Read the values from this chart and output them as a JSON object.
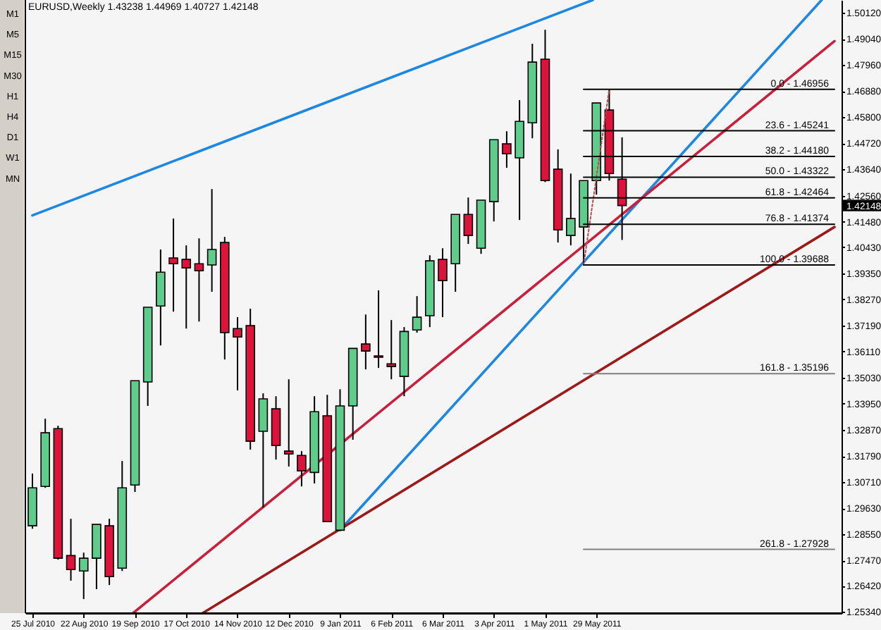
{
  "chart_data": {
    "type": "candlestick",
    "title": "EURUSD,Weekly 1.43238 1.44969 1.40727 1.42148",
    "x": [
      "2010-07-25",
      "2010-08-01",
      "2010-08-08",
      "2010-08-15",
      "2010-08-22",
      "2010-08-29",
      "2010-09-05",
      "2010-09-12",
      "2010-09-19",
      "2010-09-26",
      "2010-10-03",
      "2010-10-10",
      "2010-10-17",
      "2010-10-24",
      "2010-10-31",
      "2010-11-07",
      "2010-11-14",
      "2010-11-21",
      "2010-11-28",
      "2010-12-05",
      "2010-12-12",
      "2010-12-19",
      "2010-12-26",
      "2011-01-02",
      "2011-01-09",
      "2011-01-16",
      "2011-01-23",
      "2011-01-30",
      "2011-02-06",
      "2011-02-13",
      "2011-02-20",
      "2011-02-27",
      "2011-03-06",
      "2011-03-13",
      "2011-03-20",
      "2011-03-27",
      "2011-04-03",
      "2011-04-10",
      "2011-04-17",
      "2011-04-24",
      "2011-05-01",
      "2011-05-08",
      "2011-05-15",
      "2011-05-22",
      "2011-05-29",
      "2011-06-05",
      "2011-06-12"
    ],
    "ohlc": [
      [
        1.289,
        1.3106,
        1.2878,
        1.3047
      ],
      [
        1.3053,
        1.3333,
        1.3047,
        1.3275
      ],
      [
        1.3292,
        1.3304,
        1.275,
        1.2756
      ],
      [
        1.2767,
        1.2919,
        1.2663,
        1.2709
      ],
      [
        1.2703,
        1.2779,
        1.2587,
        1.2756
      ],
      [
        1.2756,
        1.2896,
        1.2628,
        1.2896
      ],
      [
        1.289,
        1.2919,
        1.2645,
        1.268
      ],
      [
        1.2715,
        1.3158,
        1.2703,
        1.3047
      ],
      [
        1.3059,
        1.349,
        1.303,
        1.349
      ],
      [
        1.3485,
        1.3794,
        1.3386,
        1.3794
      ],
      [
        1.3799,
        1.4033,
        1.3636,
        1.3939
      ],
      [
        1.3998,
        1.4161,
        1.3776,
        1.3974
      ],
      [
        1.3992,
        1.405,
        1.3706,
        1.3957
      ],
      [
        1.3974,
        1.4079,
        1.3735,
        1.3945
      ],
      [
        1.3969,
        1.4283,
        1.3858,
        1.4033
      ],
      [
        1.4062,
        1.4085,
        1.3578,
        1.3689
      ],
      [
        1.3706,
        1.3753,
        1.345,
        1.3671
      ],
      [
        1.3718,
        1.3788,
        1.3205,
        1.324
      ],
      [
        1.3281,
        1.3438,
        1.2966,
        1.3415
      ],
      [
        1.3374,
        1.3426,
        1.3164,
        1.3222
      ],
      [
        1.3199,
        1.3496,
        1.3135,
        1.3187
      ],
      [
        1.3181,
        1.3199,
        1.3053,
        1.3117
      ],
      [
        1.3111,
        1.3426,
        1.3065,
        1.3362
      ],
      [
        1.3345,
        1.3432,
        1.2907,
        1.2907
      ],
      [
        1.2872,
        1.3455,
        1.2872,
        1.3386
      ],
      [
        1.3386,
        1.3624,
        1.3246,
        1.3624
      ],
      [
        1.3642,
        1.3764,
        1.3537,
        1.3613
      ],
      [
        1.3593,
        1.3864,
        1.3543,
        1.3587
      ],
      [
        1.356,
        1.3741,
        1.3496,
        1.3549
      ],
      [
        1.3508,
        1.3712,
        1.3426,
        1.3694
      ],
      [
        1.37,
        1.384,
        1.3689,
        1.3753
      ],
      [
        1.3759,
        1.4009,
        1.3712,
        1.3986
      ],
      [
        1.3992,
        1.4038,
        1.3753,
        1.3904
      ],
      [
        1.3974,
        1.4178,
        1.3858,
        1.4178
      ],
      [
        1.4178,
        1.4248,
        1.4056,
        1.4091
      ],
      [
        1.4038,
        1.4237,
        1.4015,
        1.4237
      ],
      [
        1.4231,
        1.4487,
        1.4149,
        1.4487
      ],
      [
        1.447,
        1.4522,
        1.4371,
        1.4429
      ],
      [
        1.4412,
        1.4651,
        1.4155,
        1.4563
      ],
      [
        1.4557,
        1.4884,
        1.4493,
        1.4808
      ],
      [
        1.482,
        1.4942,
        1.4312,
        1.4318
      ],
      [
        1.4365,
        1.4447,
        1.4062,
        1.4114
      ],
      [
        1.4091,
        1.4347,
        1.405,
        1.4161
      ],
      [
        1.4126,
        1.4318,
        1.39688,
        1.4318
      ],
      [
        1.4318,
        1.4639,
        1.426,
        1.4639
      ],
      [
        1.461,
        1.46956,
        1.4318,
        1.4347
      ],
      [
        1.43238,
        1.44969,
        1.40727,
        1.42148
      ]
    ],
    "colors": [
      "#60cc8c",
      "#60cc8c",
      "#dc143c",
      "#dc143c",
      "#60cc8c",
      "#60cc8c",
      "#dc143c",
      "#60cc8c",
      "#60cc8c",
      "#60cc8c",
      "#60cc8c",
      "#dc143c",
      "#dc143c",
      "#dc143c",
      "#60cc8c",
      "#dc143c",
      "#dc143c",
      "#dc143c",
      "#60cc8c",
      "#dc143c",
      "#dc143c",
      "#dc143c",
      "#60cc8c",
      "#dc143c",
      "#60cc8c",
      "#60cc8c",
      "#dc143c",
      "#dc143c",
      "#dc143c",
      "#60cc8c",
      "#60cc8c",
      "#60cc8c",
      "#dc143c",
      "#60cc8c",
      "#dc143c",
      "#60cc8c",
      "#60cc8c",
      "#dc143c",
      "#60cc8c",
      "#60cc8c",
      "#dc143c",
      "#dc143c",
      "#60cc8c",
      "#60cc8c",
      "#60cc8c",
      "#dc143c",
      "#dc143c"
    ],
    "series": [
      {
        "type": "line",
        "color": "#1e88e0",
        "x": [
          "2010-07-25",
          "2011-05-27"
        ],
        "values": [
          1.4174,
          1.5065
        ]
      },
      {
        "type": "line",
        "color": "#1e88e0",
        "x": [
          "2011-01-09",
          "2011-09-29"
        ],
        "values": [
          1.2872,
          1.5065
        ]
      },
      {
        "type": "line",
        "color": "#c8203c",
        "x": [
          "2010-09-18",
          "2011-10-06"
        ],
        "values": [
          1.2529,
          1.4895
        ]
      },
      {
        "type": "line",
        "color": "#9c1a1a",
        "x": [
          "2010-10-26",
          "2011-10-06"
        ],
        "values": [
          1.2529,
          1.4126
        ]
      },
      {
        "type": "line",
        "color": "#c04848",
        "line_style": "dotted",
        "x": [
          "2011-05-22",
          "2011-06-05"
        ],
        "values": [
          1.39688,
          1.46956
        ]
      },
      {
        "type": "line",
        "name": "0.0 - 1.46956",
        "color": "#000000",
        "x": [
          "2011-05-22",
          "2011-10-06"
        ],
        "values": [
          1.46956,
          1.46956
        ]
      },
      {
        "type": "line",
        "name": "23.6 - 1.45241",
        "color": "#000000",
        "x": [
          "2011-05-22",
          "2011-10-06"
        ],
        "values": [
          1.45241,
          1.45241
        ]
      },
      {
        "type": "line",
        "name": "38.2 - 1.44180",
        "color": "#000000",
        "x": [
          "2011-05-22",
          "2011-10-06"
        ],
        "values": [
          1.4418,
          1.4418
        ]
      },
      {
        "type": "line",
        "name": "50.0 - 1.43322",
        "color": "#000000",
        "x": [
          "2011-05-22",
          "2011-10-06"
        ],
        "values": [
          1.43322,
          1.43322
        ]
      },
      {
        "type": "line",
        "name": "61.8 - 1.42464",
        "color": "#000000",
        "x": [
          "2011-05-22",
          "2011-10-06"
        ],
        "values": [
          1.42464,
          1.42464
        ]
      },
      {
        "type": "line",
        "name": "76.8 - 1.41374",
        "color": "#000000",
        "x": [
          "2011-05-22",
          "2011-10-06"
        ],
        "values": [
          1.41374,
          1.41374
        ]
      },
      {
        "type": "line",
        "name": "100.0 - 1.39688",
        "color": "#000000",
        "x": [
          "2011-05-22",
          "2011-10-06"
        ],
        "values": [
          1.39688,
          1.39688
        ]
      },
      {
        "type": "line",
        "name": "161.8 - 1.35196",
        "color": "#808080",
        "x": [
          "2011-05-22",
          "2011-10-06"
        ],
        "values": [
          1.35196,
          1.35196
        ]
      },
      {
        "type": "line",
        "name": "261.8 - 1.27928",
        "color": "#808080",
        "x": [
          "2011-05-22",
          "2011-10-06"
        ],
        "values": [
          1.27928,
          1.27928
        ]
      }
    ],
    "legend": "right",
    "xlim": [
      "2010-07-25",
      "2011-10-06"
    ],
    "xticks": [
      {
        "value": "2010-07-25",
        "label": "25 Jul 2010"
      },
      {
        "value": "2010-08-22",
        "label": "22 Aug 2010"
      },
      {
        "value": "2010-09-19",
        "label": "19 Sep 2010"
      },
      {
        "value": "2010-10-17",
        "label": "17 Oct 2010"
      },
      {
        "value": "2010-11-14",
        "label": "14 Nov 2010"
      },
      {
        "value": "2010-12-12",
        "label": "12 Dec 2010"
      },
      {
        "value": "2011-01-09",
        "label": "9 Jan 2011"
      },
      {
        "value": "2011-02-06",
        "label": "6 Feb 2011"
      },
      {
        "value": "2011-03-06",
        "label": "6 Mar 2011"
      },
      {
        "value": "2011-04-03",
        "label": "3 Apr 2011"
      },
      {
        "value": "2011-05-01",
        "label": "1 May 2011"
      },
      {
        "value": "2011-05-29",
        "label": "29 May 2011"
      }
    ],
    "ylim": [
      1.2529,
      1.5065
    ],
    "yticks": [
      {
        "value": 1.5012,
        "label": "1.50120"
      },
      {
        "value": 1.4904,
        "label": "1.49040"
      },
      {
        "value": 1.4796,
        "label": "1.47960"
      },
      {
        "value": 1.4688,
        "label": "1.46880"
      },
      {
        "value": 1.458,
        "label": "1.45800"
      },
      {
        "value": 1.4472,
        "label": "1.44720"
      },
      {
        "value": 1.4364,
        "label": "1.43640"
      },
      {
        "value": 1.4256,
        "label": "1.42560"
      },
      {
        "value": 1.42148,
        "label": "1.42148"
      },
      {
        "value": 1.4148,
        "label": "1.41480"
      },
      {
        "value": 1.4043,
        "label": "1.40430"
      },
      {
        "value": 1.3935,
        "label": "1.39350"
      },
      {
        "value": 1.3827,
        "label": "1.38270"
      },
      {
        "value": 1.3719,
        "label": "1.37190"
      },
      {
        "value": 1.3611,
        "label": "1.36110"
      },
      {
        "value": 1.3503,
        "label": "1.35030"
      },
      {
        "value": 1.3395,
        "label": "1.33950"
      },
      {
        "value": 1.3287,
        "label": "1.32870"
      },
      {
        "value": 1.3179,
        "label": "1.31790"
      },
      {
        "value": 1.3071,
        "label": "1.30710"
      },
      {
        "value": 1.2963,
        "label": "1.29630"
      },
      {
        "value": 1.2855,
        "label": "1.28550"
      },
      {
        "value": 1.2747,
        "label": "1.27470"
      },
      {
        "value": 1.2642,
        "label": "1.26420"
      },
      {
        "value": 1.2534,
        "label": "1.25340"
      }
    ],
    "annotations": [
      "M1",
      "M5",
      "M15",
      "M30",
      "H1",
      "H4",
      "D1",
      "W1",
      "MN"
    ]
  }
}
